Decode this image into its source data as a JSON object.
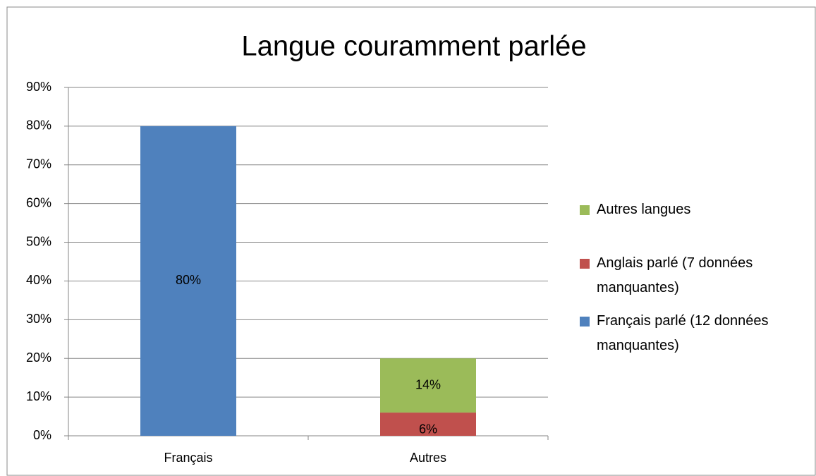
{
  "chart_data": {
    "type": "stacked_bar",
    "title": "Langue couramment parlée",
    "categories": [
      "Français",
      "Autres"
    ],
    "series": [
      {
        "name": "Français parlé (12 données manquantes)",
        "color": "#4f81bd",
        "values": [
          80,
          null
        ],
        "value_labels": [
          "80%",
          null
        ]
      },
      {
        "name": "Anglais parlé (7 données manquantes)",
        "color": "#c0504d",
        "values": [
          null,
          6
        ],
        "value_labels": [
          null,
          "6%"
        ]
      },
      {
        "name": "Autres langues",
        "color": "#9bbb59",
        "values": [
          null,
          14
        ],
        "value_labels": [
          null,
          "14%"
        ]
      }
    ],
    "ylim": [
      0,
      90
    ],
    "yticks": [
      {
        "value": 0,
        "label": "0%"
      },
      {
        "value": 10,
        "label": "10%"
      },
      {
        "value": 20,
        "label": "20%"
      },
      {
        "value": 30,
        "label": "30%"
      },
      {
        "value": 40,
        "label": "40%"
      },
      {
        "value": 50,
        "label": "50%"
      },
      {
        "value": 60,
        "label": "60%"
      },
      {
        "value": 70,
        "label": "70%"
      },
      {
        "value": 80,
        "label": "80%"
      },
      {
        "value": 90,
        "label": "90%"
      }
    ],
    "grid": true,
    "legend": "right"
  }
}
